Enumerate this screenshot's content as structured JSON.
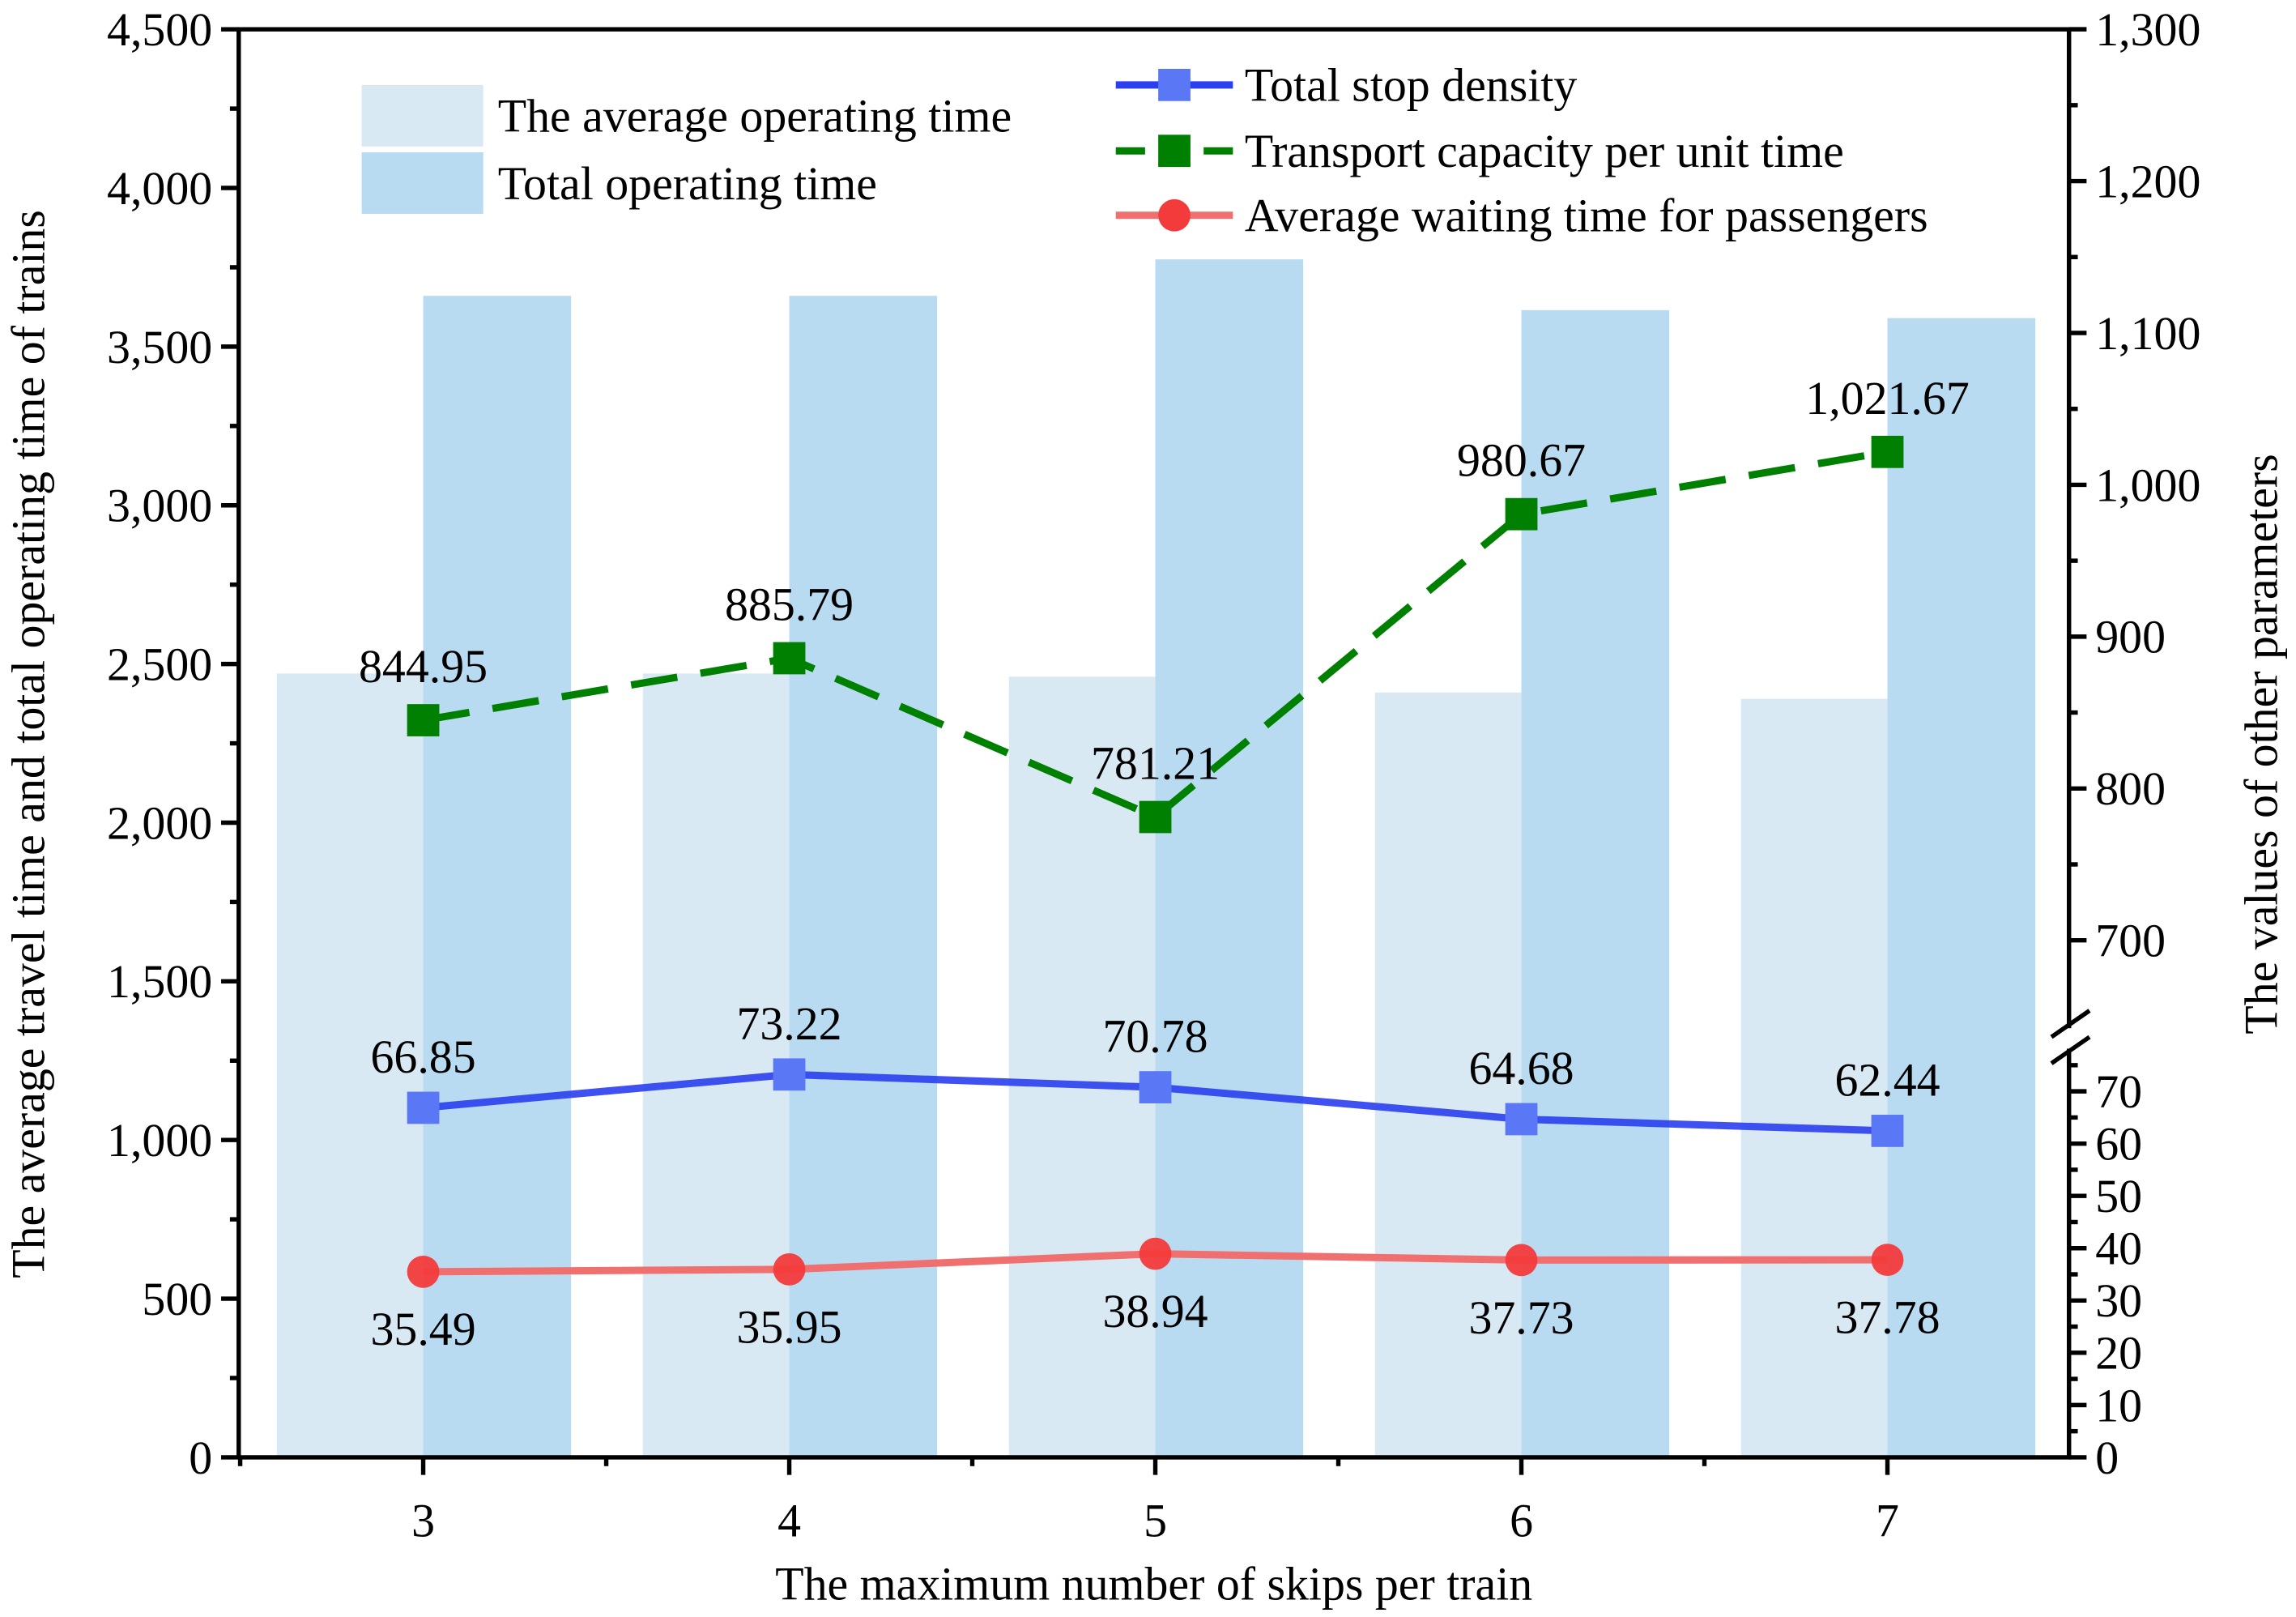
{
  "chart_data": {
    "type": "bar+line",
    "xlabel": "The maximum number of skips per train",
    "ylabel_left": "The average travel time and total operating time of trains",
    "ylabel_right": "The values of other parameters",
    "categories": [
      "3",
      "4",
      "5",
      "6",
      "7"
    ],
    "left_axis": {
      "ylim": [
        0,
        4500
      ],
      "ticks": [
        "0",
        "500",
        "1,000",
        "1,500",
        "2,000",
        "2,500",
        "3,000",
        "3,500",
        "4,000",
        "4,500"
      ],
      "tick_values": [
        0,
        500,
        1000,
        1500,
        2000,
        2500,
        3000,
        3500,
        4000,
        4500
      ]
    },
    "right_axis": {
      "broken": true,
      "lower_segment": {
        "ylim": [
          0,
          78
        ],
        "ticks": [
          "0",
          "10",
          "20",
          "30",
          "40",
          "50",
          "60",
          "70"
        ],
        "tick_values": [
          0,
          10,
          20,
          30,
          40,
          50,
          60,
          70
        ]
      },
      "upper_segment": {
        "ylim": [
          650,
          1300
        ],
        "ticks": [
          "700",
          "800",
          "900",
          "1,000",
          "1,100",
          "1,200",
          "1,300"
        ],
        "tick_values": [
          700,
          800,
          900,
          1000,
          1100,
          1200,
          1300
        ]
      }
    },
    "bar_series": [
      {
        "name": "The average operating time",
        "color": "#d9e9f3",
        "axis": "left",
        "values": [
          2470,
          2470,
          2460,
          2410,
          2390
        ]
      },
      {
        "name": "Total operating time",
        "color": "#b9dbf1",
        "axis": "left",
        "values": [
          3660,
          3660,
          3775,
          3615,
          3590
        ]
      }
    ],
    "line_series": [
      {
        "name": "Total stop density",
        "color": "#2a3ff0",
        "marker": "square",
        "dash": false,
        "axis": "right",
        "values": [
          66.85,
          73.22,
          70.78,
          64.68,
          62.44
        ],
        "labels": [
          "66.85",
          "73.22",
          "70.78",
          "64.68",
          "62.44"
        ]
      },
      {
        "name": "Transport capacity per unit time",
        "color": "#008000",
        "marker": "square",
        "dash": true,
        "axis": "right",
        "values": [
          844.95,
          885.79,
          781.21,
          980.67,
          1021.67
        ],
        "labels": [
          "844.95",
          "885.79",
          "781.21",
          "980.67",
          "1,021.67"
        ]
      },
      {
        "name": "Average waiting time for passengers",
        "color": "#f07070",
        "marker": "circle",
        "dash": false,
        "axis": "right",
        "values": [
          35.49,
          35.95,
          38.94,
          37.73,
          37.78
        ],
        "labels": [
          "35.49",
          "35.95",
          "38.94",
          "37.73",
          "37.78"
        ]
      }
    ],
    "grid": false,
    "legend": "top"
  }
}
